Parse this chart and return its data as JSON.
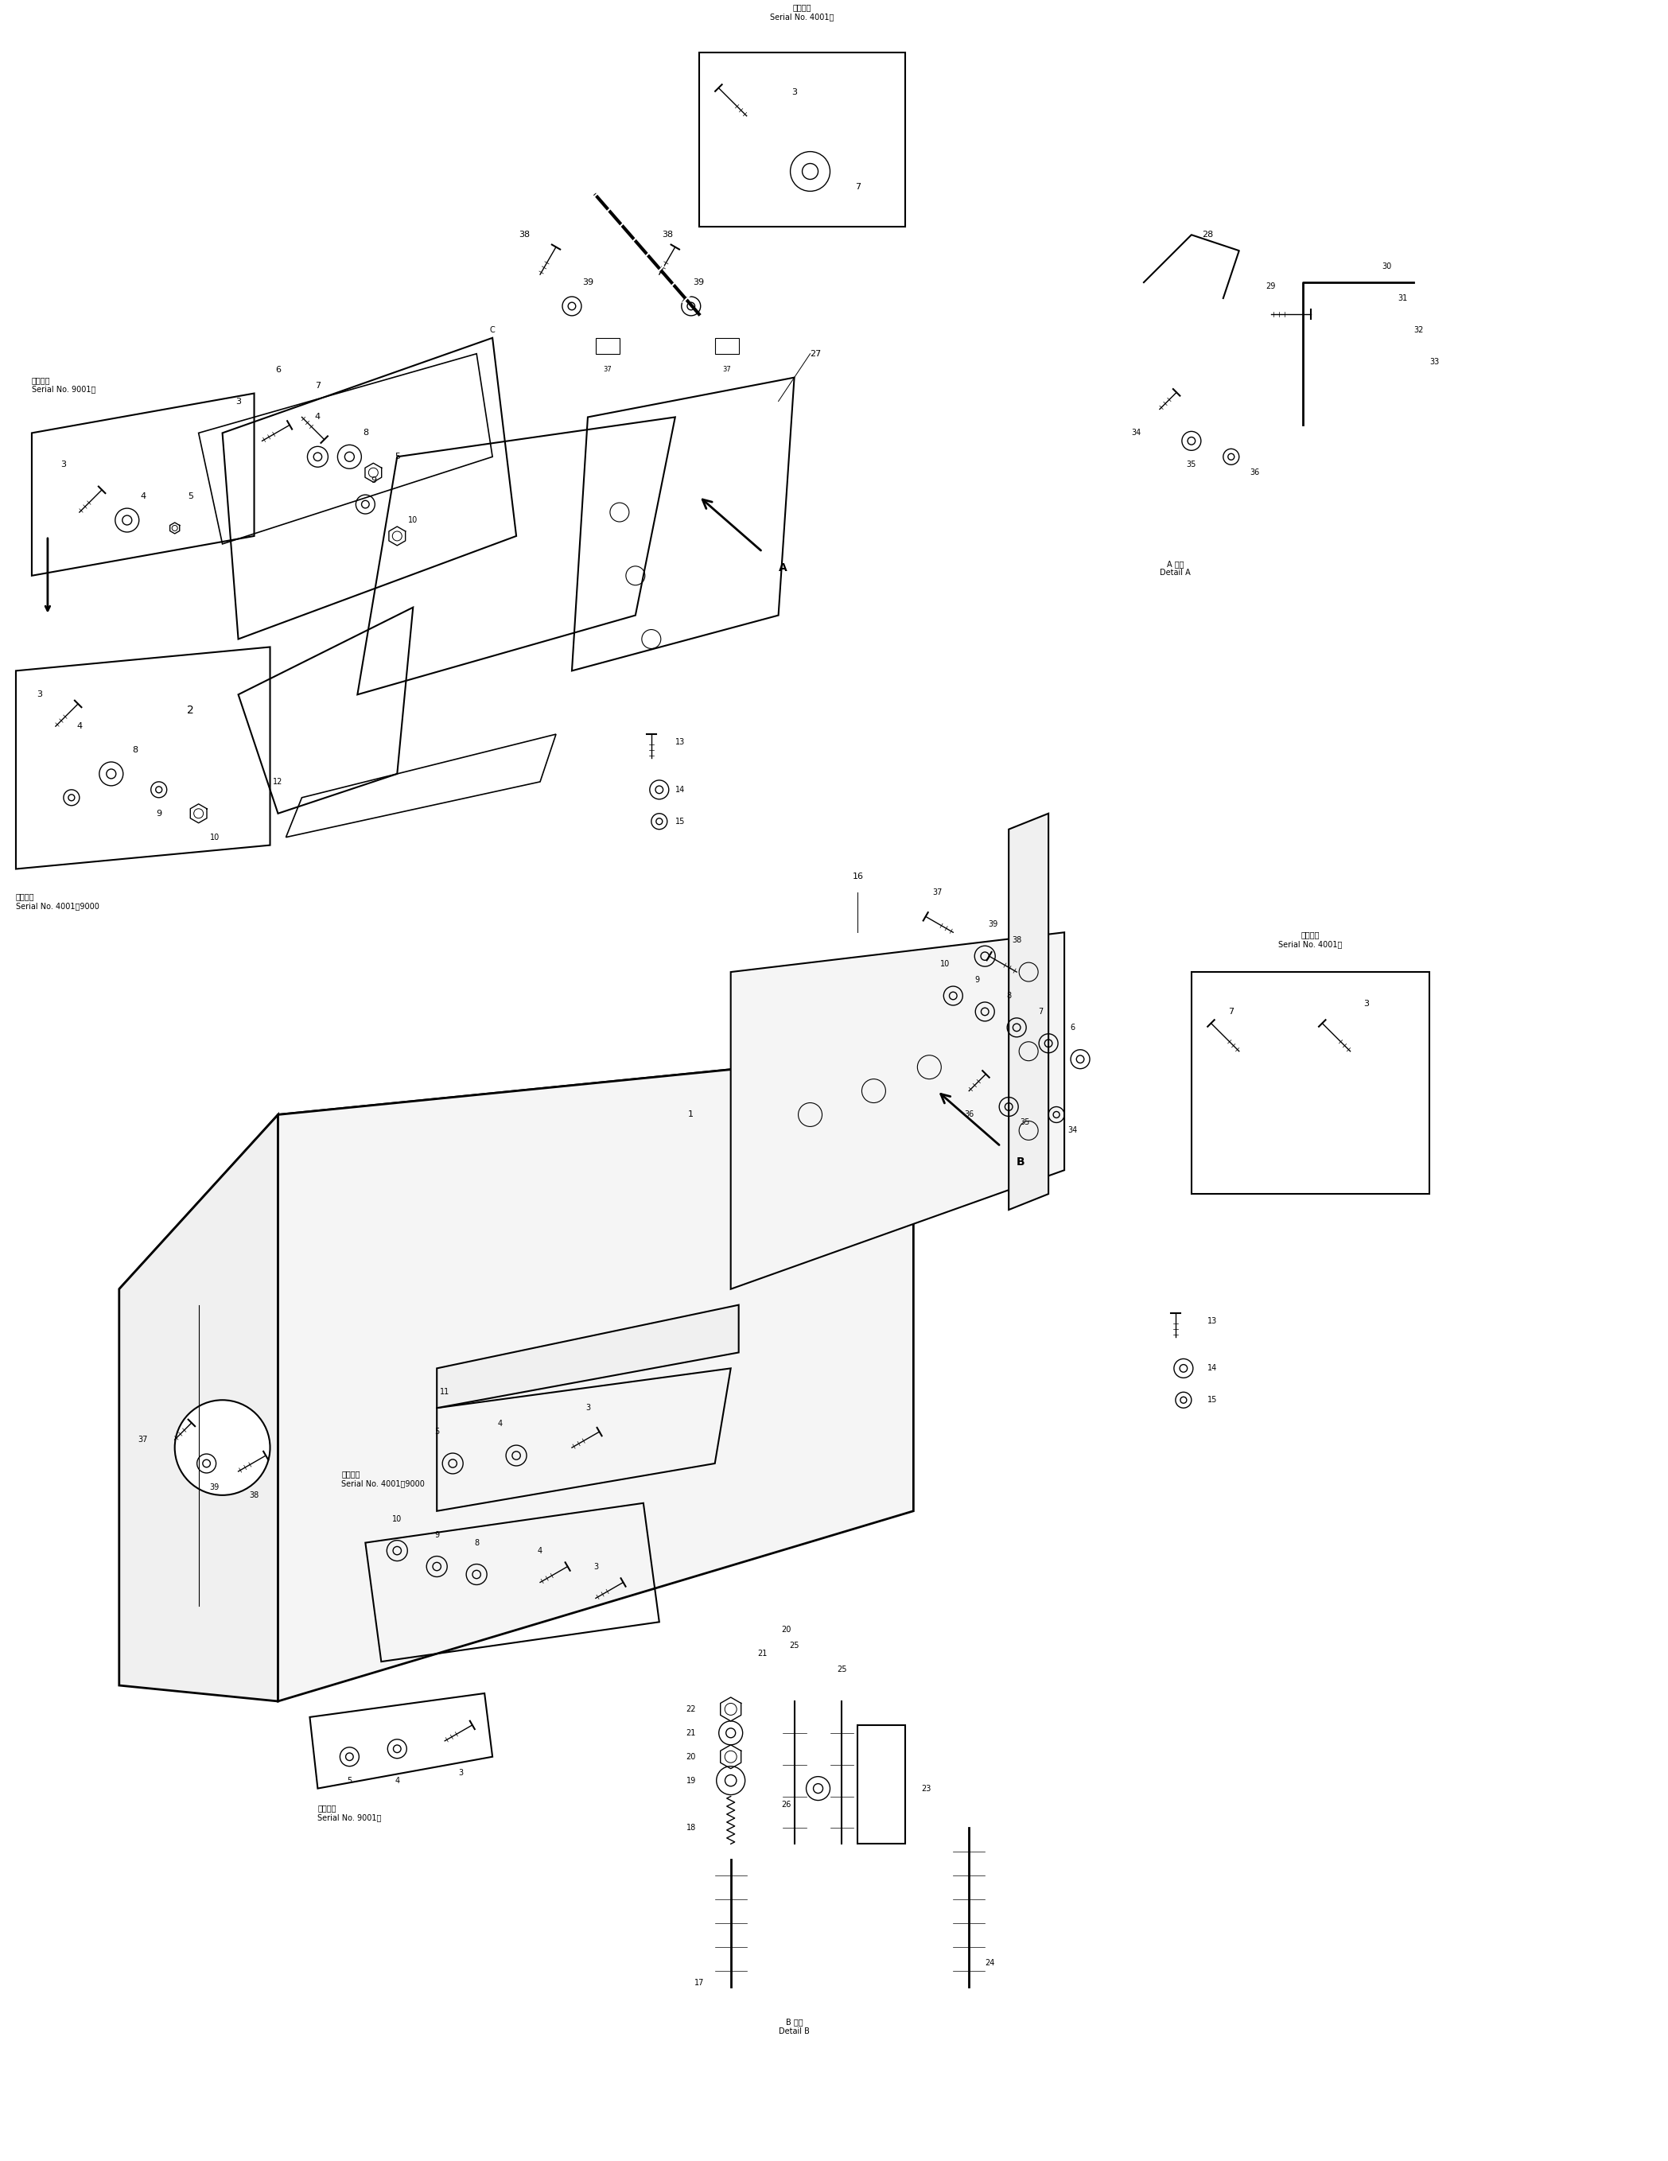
{
  "bg_color": "#ffffff",
  "line_color": "#000000",
  "fig_width": 20.97,
  "fig_height": 27.17,
  "title": "",
  "labels": {
    "top_box_title": "適用号機\nSerial No. 4001～",
    "top_left_title": "適用号機\nSerial No. 9001～",
    "mid_left_title": "適用号機\nSerial No. 4001～9000",
    "bottom_left_title1": "適用号機\nSerial No. 4001～9000",
    "bottom_left_title2": "適用号機\nSerial No. 9001～",
    "right_title": "適用号機\nSerial No. 4001～",
    "detail_a": "A 詳細\nDetail A",
    "detail_b": "B 詳細\nDetail B",
    "arrow_a": "A",
    "arrow_b": "B",
    "C": "C"
  }
}
